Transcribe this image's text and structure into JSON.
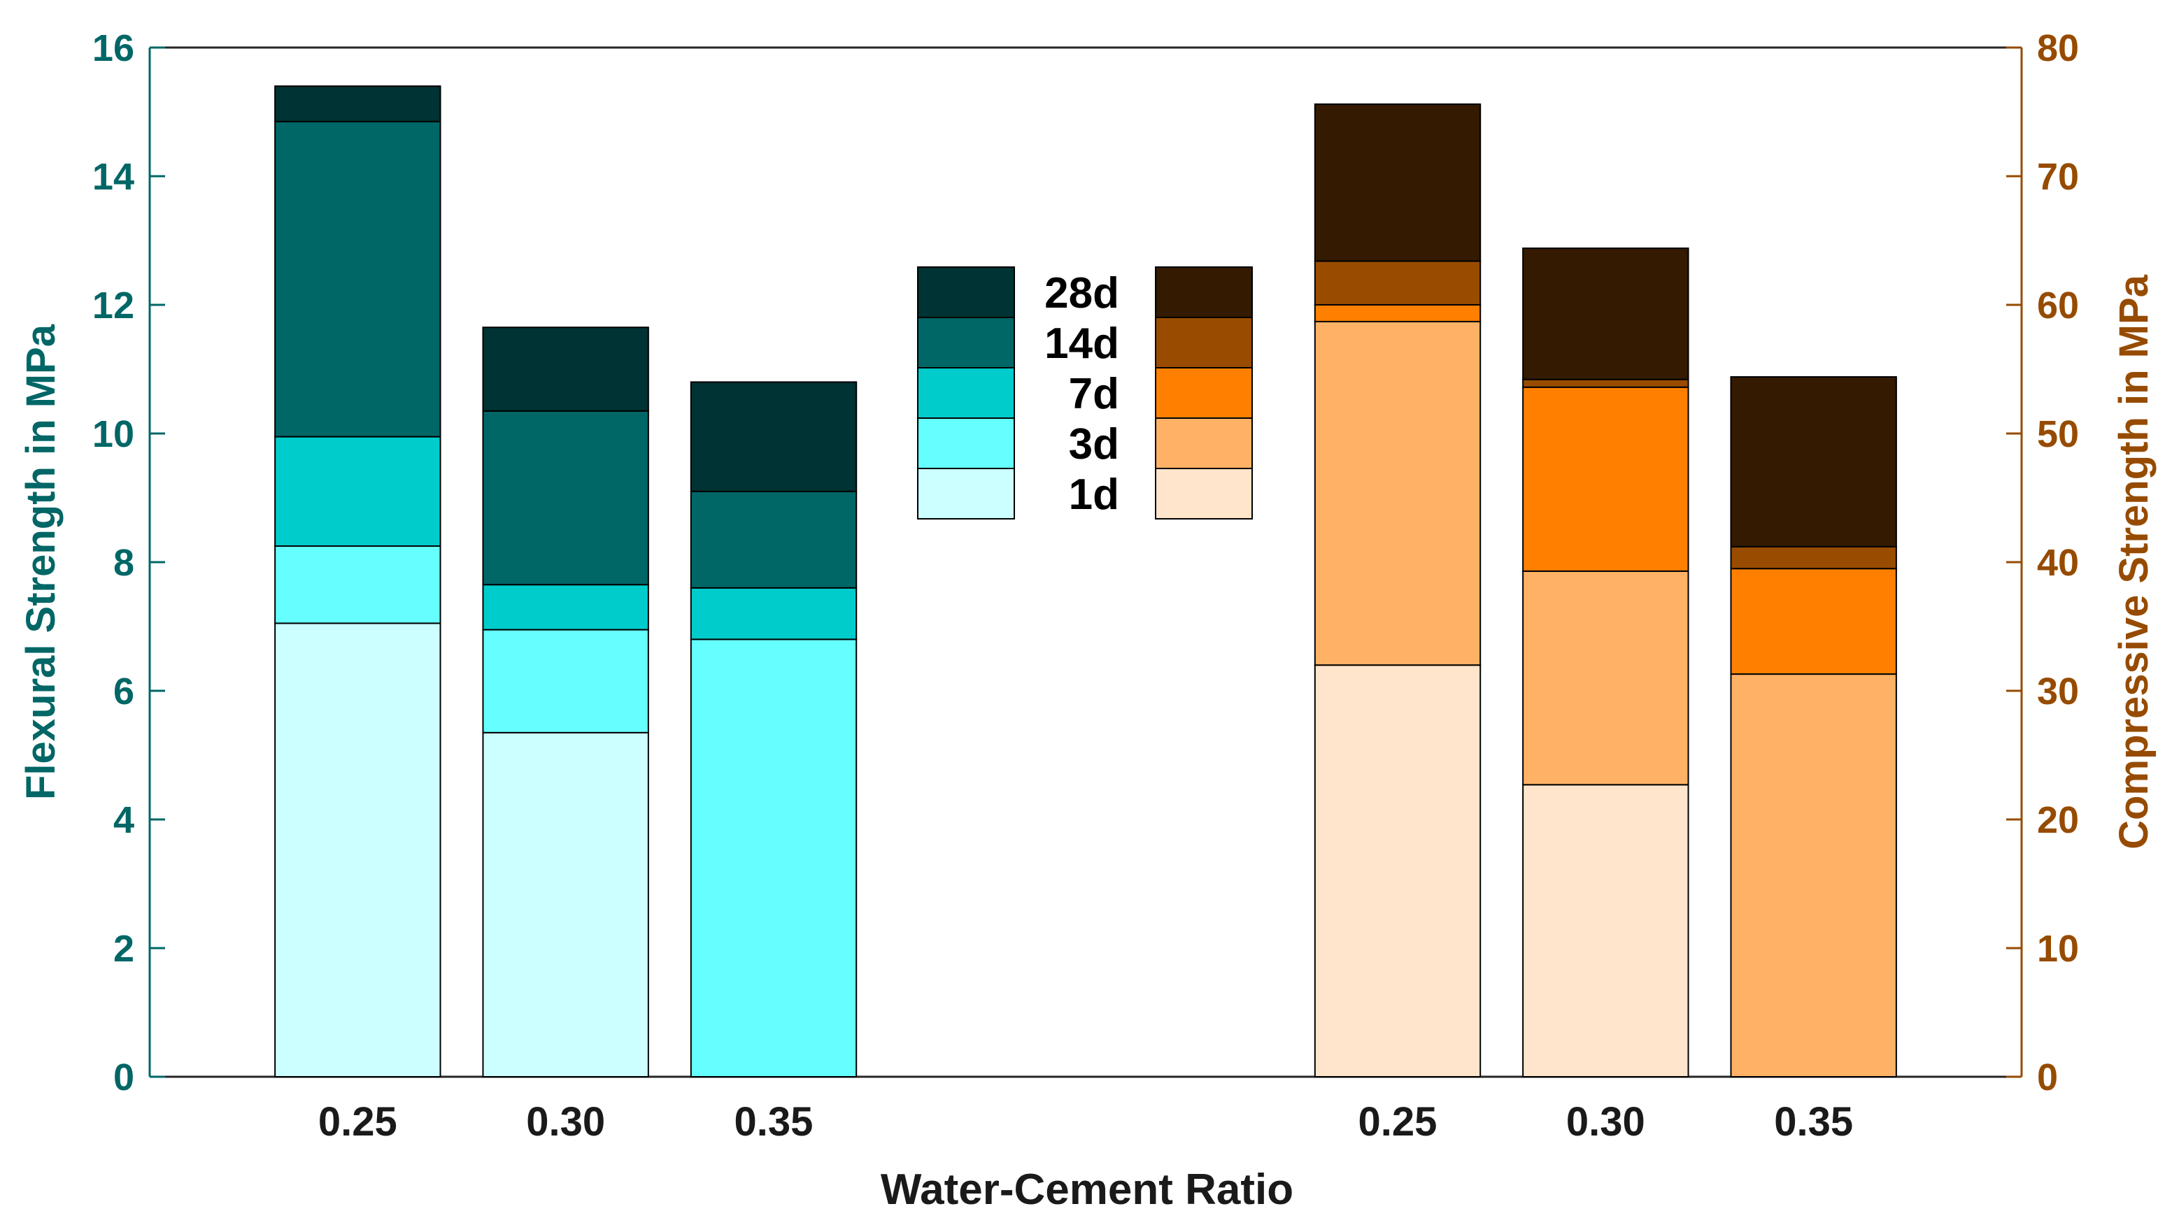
{
  "chart_data": {
    "type": "bar",
    "stacked": true,
    "xlabel": "Water-Cement Ratio",
    "left_axis": {
      "label": "Flexural Strength in MPa",
      "ylim": [
        0,
        16
      ],
      "ticks": [
        "0",
        "2",
        "4",
        "6",
        "8",
        "10",
        "12",
        "14",
        "16"
      ],
      "color": "#006666"
    },
    "right_axis": {
      "label": "Compressive Strength in MPa",
      "ylim": [
        0,
        80
      ],
      "ticks": [
        "0",
        "10",
        "20",
        "30",
        "40",
        "50",
        "60",
        "70",
        "80"
      ],
      "color": "#964B00"
    },
    "groups": [
      {
        "name": "flexural",
        "axis": "left",
        "categories": [
          "0.25",
          "0.30",
          "0.35"
        ],
        "series": [
          {
            "name": "1d",
            "color": "#CCFFFF",
            "values": [
              7.05,
              5.35,
              0
            ]
          },
          {
            "name": "3d",
            "color": "#66FFFF",
            "values": [
              8.25,
              6.95,
              6.8
            ]
          },
          {
            "name": "7d",
            "color": "#00CCCC",
            "values": [
              9.95,
              7.65,
              7.6
            ]
          },
          {
            "name": "14d",
            "color": "#006666",
            "values": [
              14.85,
              10.35,
              9.1
            ]
          },
          {
            "name": "28d",
            "color": "#003333",
            "values": [
              15.4,
              11.65,
              10.8
            ]
          }
        ]
      },
      {
        "name": "compressive",
        "axis": "right",
        "categories": [
          "0.25",
          "0.30",
          "0.35"
        ],
        "series": [
          {
            "name": "1d",
            "color": "#FFE5CC",
            "values": [
              32,
              22.7,
              0
            ]
          },
          {
            "name": "3d",
            "color": "#FFB266",
            "values": [
              58.7,
              39.3,
              31.3
            ]
          },
          {
            "name": "7d",
            "color": "#FF8000",
            "values": [
              60,
              53.6,
              39.5
            ]
          },
          {
            "name": "14d",
            "color": "#994C00",
            "values": [
              63.4,
              54.2,
              41.2
            ]
          },
          {
            "name": "28d",
            "color": "#331A00",
            "values": [
              75.6,
              64.4,
              54.4
            ]
          }
        ]
      }
    ],
    "legend": {
      "placement": "center",
      "labels": [
        "28d",
        "14d",
        "7d",
        "3d",
        "1d"
      ]
    }
  }
}
